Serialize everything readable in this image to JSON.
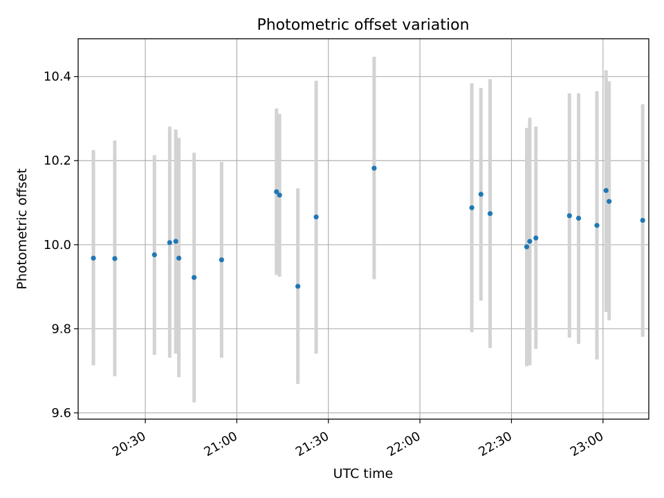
{
  "chart_data": {
    "type": "scatter",
    "title": "Photometric offset variation",
    "xlabel": "UTC time",
    "ylabel": "Photometric offset",
    "x_unit": "UTC time (HH:MM)",
    "xlim": [
      "20:08",
      "23:15"
    ],
    "ylim": [
      9.585,
      10.49
    ],
    "grid": true,
    "x_ticks": [
      "20:30",
      "21:00",
      "21:30",
      "22:00",
      "22:30",
      "23:00"
    ],
    "y_ticks": [
      "9.6",
      "9.8",
      "10.0",
      "10.2",
      "10.4"
    ],
    "marker_color": "#1f77b4",
    "errorbar_color": "#d3d3d3",
    "points": [
      {
        "time": "20:13",
        "y": 9.968,
        "low": 9.713,
        "high": 10.225
      },
      {
        "time": "20:20",
        "y": 9.967,
        "low": 9.687,
        "high": 10.248
      },
      {
        "time": "20:33",
        "y": 9.976,
        "low": 9.738,
        "high": 10.213
      },
      {
        "time": "20:38",
        "y": 10.005,
        "low": 9.731,
        "high": 10.281
      },
      {
        "time": "20:40",
        "y": 10.008,
        "low": 9.741,
        "high": 10.274
      },
      {
        "time": "20:41",
        "y": 9.968,
        "low": 9.685,
        "high": 10.254
      },
      {
        "time": "20:46",
        "y": 9.922,
        "low": 9.625,
        "high": 10.219
      },
      {
        "time": "20:55",
        "y": 9.964,
        "low": 9.731,
        "high": 10.197
      },
      {
        "time": "21:13",
        "y": 10.126,
        "low": 9.928,
        "high": 10.324
      },
      {
        "time": "21:14",
        "y": 10.118,
        "low": 9.924,
        "high": 10.311
      },
      {
        "time": "21:20",
        "y": 9.901,
        "low": 9.669,
        "high": 10.134
      },
      {
        "time": "21:26",
        "y": 10.066,
        "low": 9.741,
        "high": 10.39
      },
      {
        "time": "21:45",
        "y": 10.182,
        "low": 9.918,
        "high": 10.447
      },
      {
        "time": "22:17",
        "y": 10.088,
        "low": 9.792,
        "high": 10.384
      },
      {
        "time": "22:20",
        "y": 10.12,
        "low": 9.867,
        "high": 10.373
      },
      {
        "time": "22:23",
        "y": 10.074,
        "low": 9.754,
        "high": 10.394
      },
      {
        "time": "22:35",
        "y": 9.995,
        "low": 9.711,
        "high": 10.278
      },
      {
        "time": "22:36",
        "y": 10.008,
        "low": 9.713,
        "high": 10.302
      },
      {
        "time": "22:38",
        "y": 10.016,
        "low": 9.752,
        "high": 10.281
      },
      {
        "time": "22:49",
        "y": 10.069,
        "low": 9.779,
        "high": 10.36
      },
      {
        "time": "22:52",
        "y": 10.063,
        "low": 9.764,
        "high": 10.36
      },
      {
        "time": "22:58",
        "y": 10.046,
        "low": 9.727,
        "high": 10.365
      },
      {
        "time": "23:01",
        "y": 10.129,
        "low": 9.84,
        "high": 10.415
      },
      {
        "time": "23:02",
        "y": 10.103,
        "low": 9.82,
        "high": 10.389
      },
      {
        "time": "23:13",
        "y": 10.058,
        "low": 9.781,
        "high": 10.334
      }
    ]
  }
}
